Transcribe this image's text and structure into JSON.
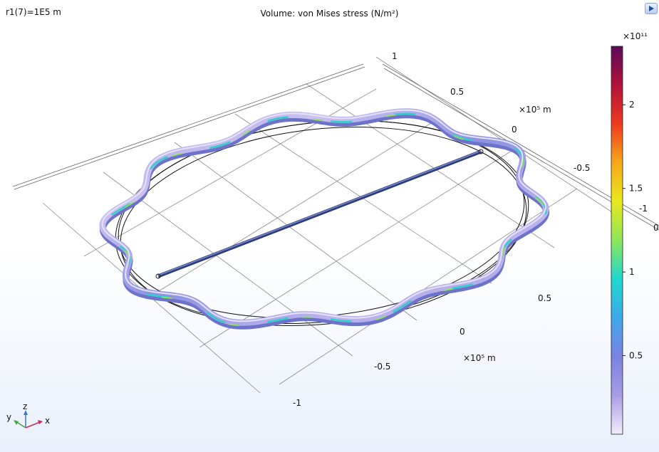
{
  "header": {
    "parameter": "r1(7)=1E5 m",
    "title": "Volume: von Mises stress (N/m²)"
  },
  "chart_data": {
    "type": "surface-3d",
    "title": "Volume: von Mises stress (N/m²)",
    "axes": {
      "x": {
        "ticks": [
          "-1",
          "-0.5",
          "0",
          "0.5"
        ],
        "unit_label": "×10⁵ m"
      },
      "y": {
        "ticks": [
          "-1",
          "-0.5",
          "0",
          "0.5",
          "1"
        ],
        "unit_label": "×10⁵ m"
      },
      "floor_ticks": [
        "0",
        "-1"
      ]
    },
    "colorbar": {
      "multiplier": "×10¹¹",
      "ticks": [
        {
          "label": "0.5",
          "value": 0.5
        },
        {
          "label": "1",
          "value": 1
        },
        {
          "label": "1.5",
          "value": 1.5
        },
        {
          "label": "2",
          "value": 2
        }
      ],
      "range": [
        0.03,
        2.35
      ],
      "colors": [
        "#f2eefb",
        "#a89ce6",
        "#7b82e0",
        "#3fa8e9",
        "#1fd8cf",
        "#8ee65a",
        "#e8e81c",
        "#f7a81a",
        "#ee3a1e",
        "#b0123b",
        "#5b0a5b"
      ]
    }
  },
  "triad": {
    "x": "x",
    "y": "y",
    "z": "z"
  }
}
